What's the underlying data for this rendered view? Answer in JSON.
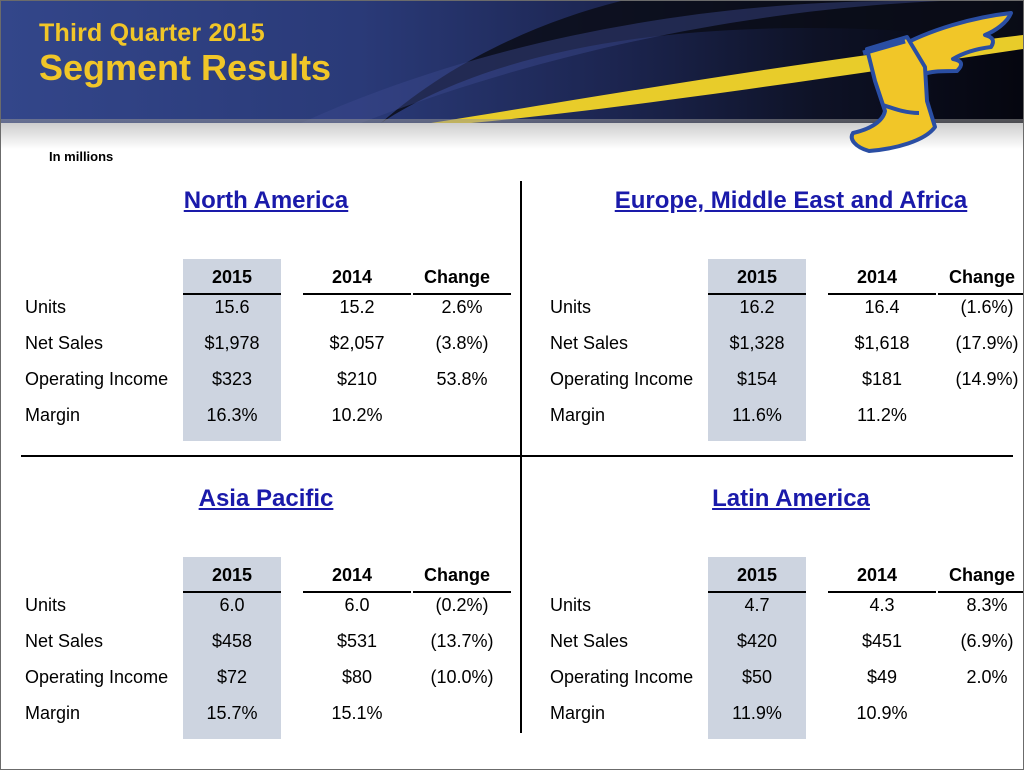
{
  "header": {
    "title_line1": "Third Quarter 2015",
    "title_line2": "Segment Results",
    "logo": "winged-foot-logo-icon"
  },
  "note": "In millions",
  "colors": {
    "title": "#f1c628",
    "section_title": "#1a1aaa",
    "highlight_column": "#cdd4e0"
  },
  "columns": [
    "2015",
    "2014",
    "Change"
  ],
  "row_labels": [
    "Units",
    "Net Sales",
    "Operating Income",
    "Margin"
  ],
  "segments": [
    {
      "name": "North America",
      "rows": [
        [
          "15.6",
          "15.2",
          "2.6%"
        ],
        [
          "$1,978",
          "$2,057",
          "(3.8%)"
        ],
        [
          "$323",
          "$210",
          "53.8%"
        ],
        [
          "16.3%",
          "10.2%",
          ""
        ]
      ]
    },
    {
      "name": "Europe, Middle East and Africa",
      "rows": [
        [
          "16.2",
          "16.4",
          "(1.6%)"
        ],
        [
          "$1,328",
          "$1,618",
          "(17.9%)"
        ],
        [
          "$154",
          "$181",
          "(14.9%)"
        ],
        [
          "11.6%",
          "11.2%",
          ""
        ]
      ]
    },
    {
      "name": "Asia Pacific",
      "rows": [
        [
          "6.0",
          "6.0",
          "(0.2%)"
        ],
        [
          "$458",
          "$531",
          "(13.7%)"
        ],
        [
          "$72",
          "$80",
          "(10.0%)"
        ],
        [
          "15.7%",
          "15.1%",
          ""
        ]
      ]
    },
    {
      "name": "Latin America",
      "rows": [
        [
          "4.7",
          "4.3",
          "8.3%"
        ],
        [
          "$420",
          "$451",
          "(6.9%)"
        ],
        [
          "$50",
          "$49",
          "2.0%"
        ],
        [
          "11.9%",
          "10.9%",
          ""
        ]
      ]
    }
  ]
}
